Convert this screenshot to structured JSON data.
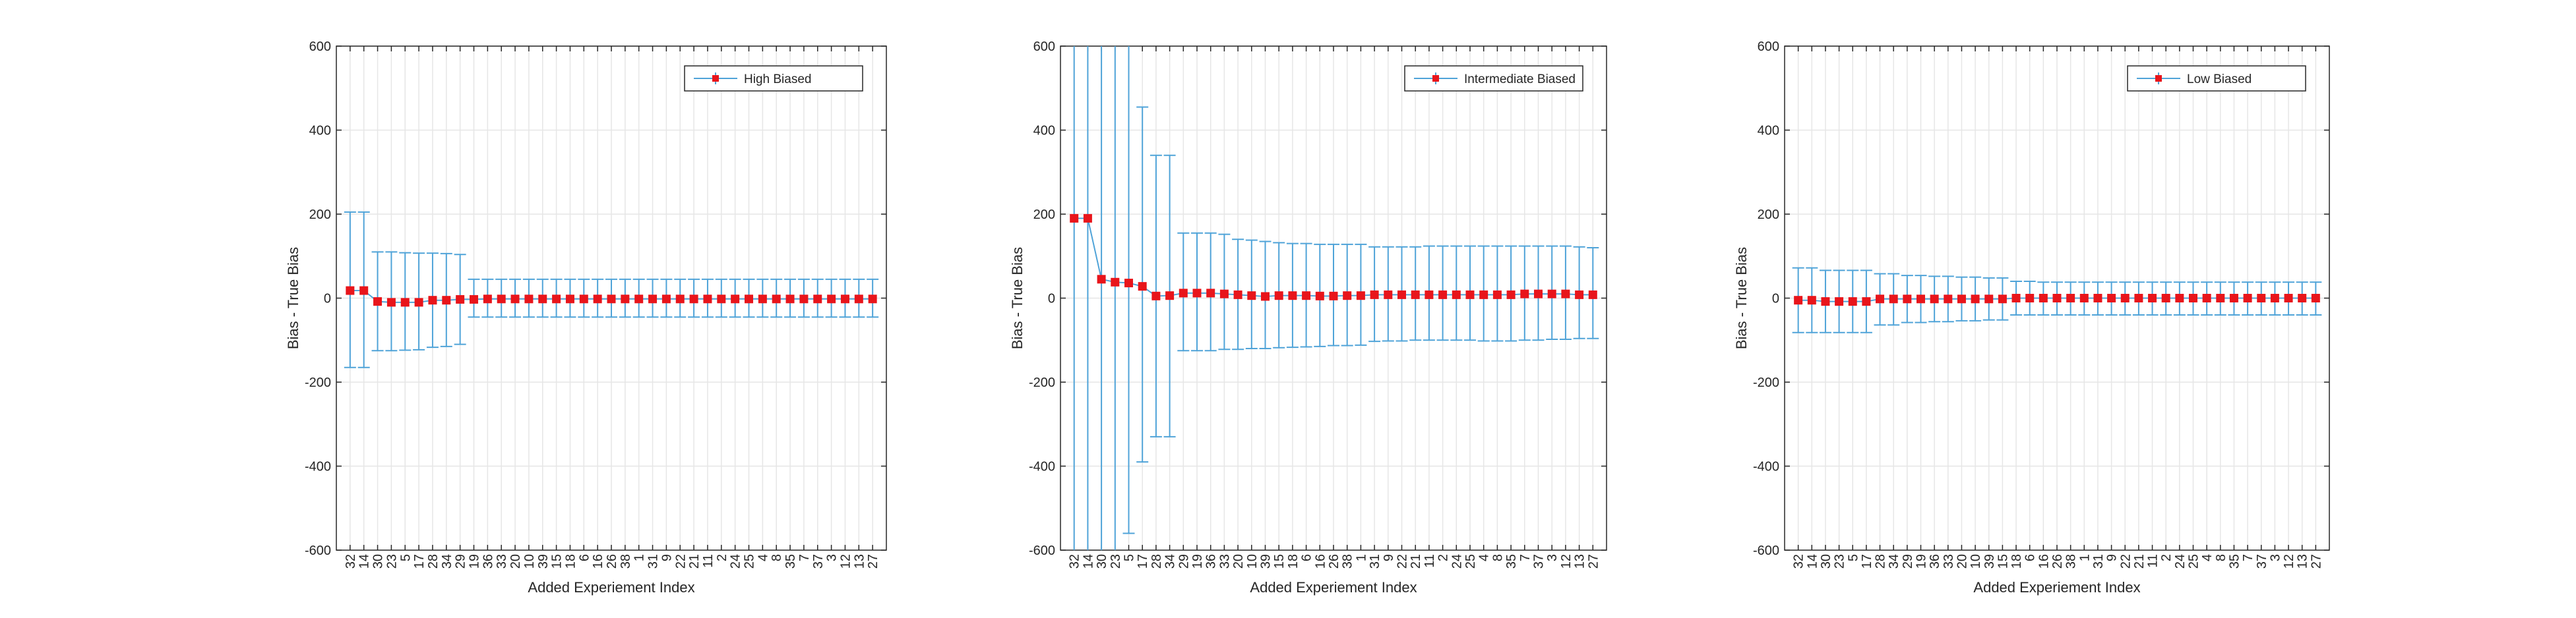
{
  "chart_data": [
    {
      "type": "line",
      "subtype": "errorbar",
      "xlabel": "Added Experiement Index",
      "ylabel": "Bias - True Bias",
      "ylim": [
        -600,
        600
      ],
      "yticks": [
        -600,
        -400,
        -200,
        0,
        200,
        400,
        600
      ],
      "grid": true,
      "legend": {
        "placement": "top-right",
        "label": "High Biased"
      },
      "categories": [
        "32",
        "14",
        "30",
        "23",
        "5",
        "17",
        "28",
        "34",
        "29",
        "19",
        "36",
        "33",
        "20",
        "10",
        "39",
        "15",
        "18",
        "6",
        "16",
        "26",
        "38",
        "1",
        "31",
        "9",
        "22",
        "21",
        "11",
        "2",
        "24",
        "25",
        "4",
        "8",
        "35",
        "7",
        "37",
        "3",
        "12",
        "13",
        "27"
      ],
      "series": [
        {
          "name": "High Biased",
          "values": [
            18,
            18,
            -8,
            -10,
            -10,
            -10,
            -5,
            -5,
            -3,
            -3,
            -2,
            -2,
            -2,
            -2,
            -2,
            -2,
            -2,
            -2,
            -2,
            -2,
            -2,
            -2,
            -2,
            -2,
            -2,
            -2,
            -2,
            -2,
            -2,
            -2,
            -2,
            -2,
            -2,
            -2,
            -2,
            -2,
            -2,
            -2,
            -2
          ],
          "err_upper": [
            205,
            205,
            110,
            110,
            108,
            107,
            107,
            106,
            104,
            45,
            45,
            45,
            45,
            45,
            45,
            45,
            45,
            45,
            45,
            45,
            45,
            45,
            45,
            45,
            45,
            45,
            45,
            45,
            45,
            45,
            45,
            45,
            45,
            45,
            45,
            45,
            45,
            45,
            45
          ],
          "err_lower": [
            -165,
            -165,
            -125,
            -125,
            -124,
            -123,
            -117,
            -115,
            -110,
            -45,
            -45,
            -45,
            -45,
            -45,
            -45,
            -45,
            -45,
            -45,
            -45,
            -45,
            -45,
            -45,
            -45,
            -45,
            -45,
            -45,
            -45,
            -45,
            -45,
            -45,
            -45,
            -45,
            -45,
            -45,
            -45,
            -45,
            -45,
            -45,
            -45
          ]
        }
      ]
    },
    {
      "type": "line",
      "subtype": "errorbar",
      "xlabel": "Added Experiement Index",
      "ylabel": "Bias - True Bias",
      "ylim": [
        -600,
        600
      ],
      "yticks": [
        -600,
        -400,
        -200,
        0,
        200,
        400,
        600
      ],
      "grid": true,
      "legend": {
        "placement": "top-right",
        "label": "Intermediate Biased"
      },
      "categories": [
        "32",
        "14",
        "30",
        "23",
        "5",
        "17",
        "28",
        "34",
        "29",
        "19",
        "36",
        "33",
        "20",
        "10",
        "39",
        "15",
        "18",
        "6",
        "16",
        "26",
        "38",
        "1",
        "31",
        "9",
        "22",
        "21",
        "11",
        "2",
        "24",
        "25",
        "4",
        "8",
        "35",
        "7",
        "37",
        "3",
        "12",
        "13",
        "27"
      ],
      "series": [
        {
          "name": "Intermediate Biased",
          "values": [
            190,
            190,
            45,
            38,
            36,
            28,
            5,
            6,
            12,
            12,
            12,
            10,
            8,
            6,
            4,
            6,
            6,
            6,
            5,
            5,
            6,
            6,
            8,
            8,
            8,
            8,
            8,
            8,
            8,
            8,
            8,
            8,
            8,
            10,
            10,
            10,
            10,
            8,
            8
          ],
          "err_upper": [
            700,
            700,
            700,
            700,
            700,
            455,
            340,
            340,
            155,
            155,
            155,
            152,
            140,
            138,
            135,
            132,
            130,
            130,
            128,
            128,
            128,
            128,
            122,
            122,
            122,
            122,
            124,
            124,
            124,
            124,
            124,
            124,
            124,
            124,
            124,
            124,
            124,
            122,
            120
          ],
          "err_lower": [
            -700,
            -700,
            -700,
            -700,
            -560,
            -390,
            -330,
            -330,
            -125,
            -125,
            -125,
            -122,
            -122,
            -120,
            -120,
            -118,
            -117,
            -116,
            -115,
            -113,
            -113,
            -112,
            -103,
            -102,
            -102,
            -100,
            -100,
            -100,
            -100,
            -100,
            -102,
            -102,
            -102,
            -100,
            -100,
            -98,
            -98,
            -96,
            -96
          ]
        }
      ]
    },
    {
      "type": "line",
      "subtype": "errorbar",
      "xlabel": "Added Experiement Index",
      "ylabel": "Bias - True Bias",
      "ylim": [
        -600,
        600
      ],
      "yticks": [
        -600,
        -400,
        -200,
        0,
        200,
        400,
        600
      ],
      "grid": true,
      "legend": {
        "placement": "top-right",
        "label": "Low Biased"
      },
      "categories": [
        "32",
        "14",
        "30",
        "23",
        "5",
        "17",
        "28",
        "34",
        "29",
        "19",
        "36",
        "33",
        "20",
        "10",
        "39",
        "15",
        "18",
        "6",
        "16",
        "26",
        "38",
        "1",
        "31",
        "9",
        "22",
        "21",
        "11",
        "2",
        "24",
        "25",
        "4",
        "8",
        "35",
        "7",
        "37",
        "3",
        "12",
        "13",
        "27"
      ],
      "series": [
        {
          "name": "Low Biased",
          "values": [
            -5,
            -5,
            -8,
            -8,
            -8,
            -8,
            -2,
            -2,
            -2,
            -2,
            -2,
            -2,
            -2,
            -2,
            -2,
            -2,
            0,
            0,
            0,
            0,
            0,
            0,
            0,
            0,
            0,
            0,
            0,
            0,
            0,
            0,
            0,
            0,
            0,
            0,
            0,
            0,
            0,
            0,
            0
          ],
          "err_upper": [
            72,
            72,
            66,
            66,
            66,
            66,
            58,
            58,
            54,
            54,
            52,
            52,
            50,
            50,
            48,
            48,
            40,
            40,
            38,
            38,
            38,
            38,
            38,
            38,
            38,
            38,
            38,
            38,
            38,
            38,
            38,
            38,
            38,
            38,
            38,
            38,
            38,
            38,
            38
          ],
          "err_lower": [
            -82,
            -82,
            -82,
            -82,
            -82,
            -82,
            -64,
            -64,
            -58,
            -58,
            -56,
            -56,
            -54,
            -54,
            -52,
            -52,
            -40,
            -40,
            -40,
            -40,
            -40,
            -40,
            -40,
            -40,
            -40,
            -40,
            -40,
            -40,
            -40,
            -40,
            -40,
            -40,
            -40,
            -40,
            -40,
            -40,
            -40,
            -40,
            -40
          ]
        }
      ]
    }
  ],
  "colors": {
    "errorbar": "#4fa3d8",
    "marker": "#e8151b",
    "axis": "#262626",
    "grid": "#e6e6e6"
  }
}
